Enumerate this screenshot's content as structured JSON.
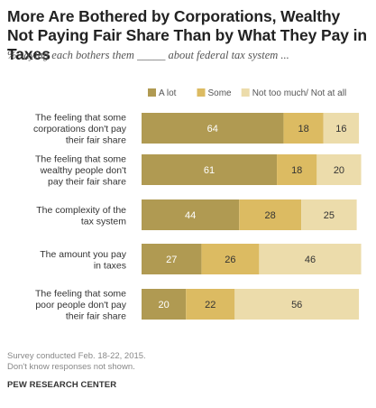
{
  "title": "More Are Bothered by Corporations, Wealthy Not Paying Fair Share Than by What They Pay in Taxes",
  "subtitle": "% saying each bothers them _____ about federal tax system ...",
  "colors": {
    "a_lot": "#b09a52",
    "some": "#dcbb62",
    "not_too_much": "#ecdcab"
  },
  "chart_data": {
    "type": "bar",
    "orientation": "horizontal",
    "stacked": true,
    "categories": [
      [
        "The feeling that some",
        "corporations don't pay",
        "their fair share"
      ],
      [
        "The feeling that some",
        "wealthy people don't",
        "pay their fair share"
      ],
      [
        "The complexity of the",
        "tax system"
      ],
      [
        "The amount you pay",
        "in taxes"
      ],
      [
        "The feeling that some",
        "poor people don't pay",
        "their fair share"
      ]
    ],
    "series": [
      {
        "name": "A lot",
        "values": [
          64,
          61,
          44,
          27,
          20
        ]
      },
      {
        "name": "Some",
        "values": [
          18,
          18,
          28,
          26,
          22
        ]
      },
      {
        "name": "Not too much/ Not at all",
        "values": [
          16,
          20,
          25,
          46,
          56
        ]
      }
    ],
    "xlim": [
      0,
      100
    ],
    "legend": "top-right"
  },
  "footer": {
    "source": "Survey conducted Feb. 18-22, 2015.",
    "note": "Don't know responses not shown.",
    "org": "PEW RESEARCH CENTER"
  }
}
